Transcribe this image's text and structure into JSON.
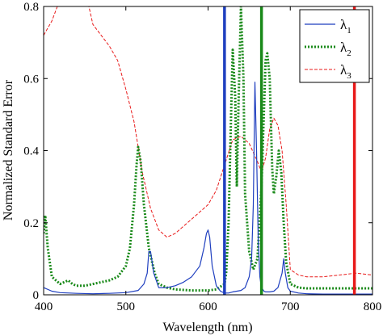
{
  "chart_data": {
    "type": "line",
    "title": "",
    "xlabel": "Wavelength (nm)",
    "ylabel": "Normalized Standard Error",
    "xlim": [
      400,
      800
    ],
    "ylim": [
      0,
      0.8
    ],
    "xticks": [
      400,
      500,
      600,
      700,
      800
    ],
    "yticks": [
      0,
      0.2,
      0.4,
      0.6,
      0.8
    ],
    "xtick_labels": [
      "400",
      "500",
      "600",
      "700",
      "800"
    ],
    "ytick_labels": [
      "0",
      "0.2",
      "0.4",
      "0.6",
      "0.8"
    ],
    "grid": false,
    "legend_position": "top-right",
    "series": [
      {
        "name": "λ",
        "subscript": "1",
        "color": "#1f3fbf",
        "style": "solid",
        "x": [
          400,
          410,
          420,
          440,
          460,
          480,
          500,
          515,
          522,
          526,
          528,
          530,
          534,
          540,
          550,
          560,
          570,
          580,
          590,
          595,
          598,
          600,
          602,
          605,
          610,
          615,
          620,
          625,
          630,
          635,
          640,
          645,
          650,
          653,
          655,
          657,
          659,
          661,
          663,
          665,
          668,
          670,
          675,
          680,
          685,
          690,
          692,
          694,
          697,
          700,
          710,
          720,
          740,
          760,
          780,
          800
        ],
        "y": [
          0.02,
          0.01,
          0.006,
          0.004,
          0.003,
          0.004,
          0.006,
          0.012,
          0.03,
          0.06,
          0.12,
          0.12,
          0.06,
          0.02,
          0.02,
          0.025,
          0.035,
          0.05,
          0.08,
          0.13,
          0.17,
          0.18,
          0.16,
          0.08,
          0.025,
          0.01,
          0.005,
          0.005,
          0.008,
          0.01,
          0.012,
          0.02,
          0.05,
          0.1,
          0.25,
          0.59,
          0.4,
          0.15,
          0.05,
          0.02,
          0.01,
          0.008,
          0.008,
          0.01,
          0.02,
          0.06,
          0.1,
          0.06,
          0.02,
          0.01,
          0.005,
          0.003,
          0.002,
          0.002,
          0.002,
          0.002
        ]
      },
      {
        "name": "λ",
        "subscript": "2",
        "color": "#1a8a1a",
        "style": "dotted",
        "x": [
          400,
          402,
          405,
          410,
          420,
          430,
          435,
          440,
          450,
          460,
          470,
          480,
          490,
          500,
          505,
          510,
          513,
          515,
          518,
          522,
          528,
          535,
          540,
          550,
          560,
          580,
          600,
          610,
          620,
          622,
          625,
          628,
          630,
          633,
          635,
          637,
          640,
          643,
          645,
          650,
          655,
          660,
          665,
          670,
          672,
          675,
          678,
          680,
          683,
          686,
          689,
          692,
          695,
          700,
          710,
          720,
          740,
          760,
          780,
          800
        ],
        "y": [
          0.17,
          0.22,
          0.13,
          0.05,
          0.03,
          0.04,
          0.03,
          0.025,
          0.025,
          0.03,
          0.035,
          0.04,
          0.05,
          0.08,
          0.13,
          0.25,
          0.36,
          0.41,
          0.37,
          0.25,
          0.13,
          0.06,
          0.03,
          0.02,
          0.015,
          0.012,
          0.012,
          0.015,
          0.03,
          0.06,
          0.2,
          0.5,
          0.68,
          0.55,
          0.3,
          0.52,
          0.8,
          0.6,
          0.28,
          0.12,
          0.07,
          0.1,
          0.3,
          0.65,
          0.67,
          0.6,
          0.35,
          0.28,
          0.33,
          0.4,
          0.34,
          0.2,
          0.09,
          0.03,
          0.02,
          0.018,
          0.018,
          0.018,
          0.018,
          0.018
        ]
      },
      {
        "name": "λ",
        "subscript": "3",
        "color": "#e81a1a",
        "style": "dashed",
        "x": [
          400,
          410,
          420,
          430,
          440,
          450,
          455,
          460,
          470,
          480,
          490,
          500,
          510,
          520,
          530,
          540,
          550,
          560,
          570,
          580,
          590,
          600,
          610,
          620,
          630,
          640,
          650,
          660,
          665,
          670,
          675,
          680,
          685,
          690,
          695,
          700,
          710,
          720,
          740,
          760,
          780,
          800
        ],
        "y": [
          0.72,
          0.76,
          0.82,
          0.85,
          0.86,
          0.85,
          0.8,
          0.75,
          0.72,
          0.69,
          0.65,
          0.57,
          0.48,
          0.34,
          0.24,
          0.18,
          0.16,
          0.17,
          0.19,
          0.21,
          0.23,
          0.25,
          0.29,
          0.36,
          0.43,
          0.44,
          0.42,
          0.37,
          0.34,
          0.38,
          0.46,
          0.49,
          0.47,
          0.4,
          0.25,
          0.07,
          0.055,
          0.05,
          0.05,
          0.055,
          0.06,
          0.055
        ]
      }
    ],
    "vertical_lines": [
      {
        "x": 620,
        "color": "#1f3fbf"
      },
      {
        "x": 665,
        "color": "#1a8a1a"
      },
      {
        "x": 778,
        "color": "#e81a1a"
      }
    ]
  }
}
